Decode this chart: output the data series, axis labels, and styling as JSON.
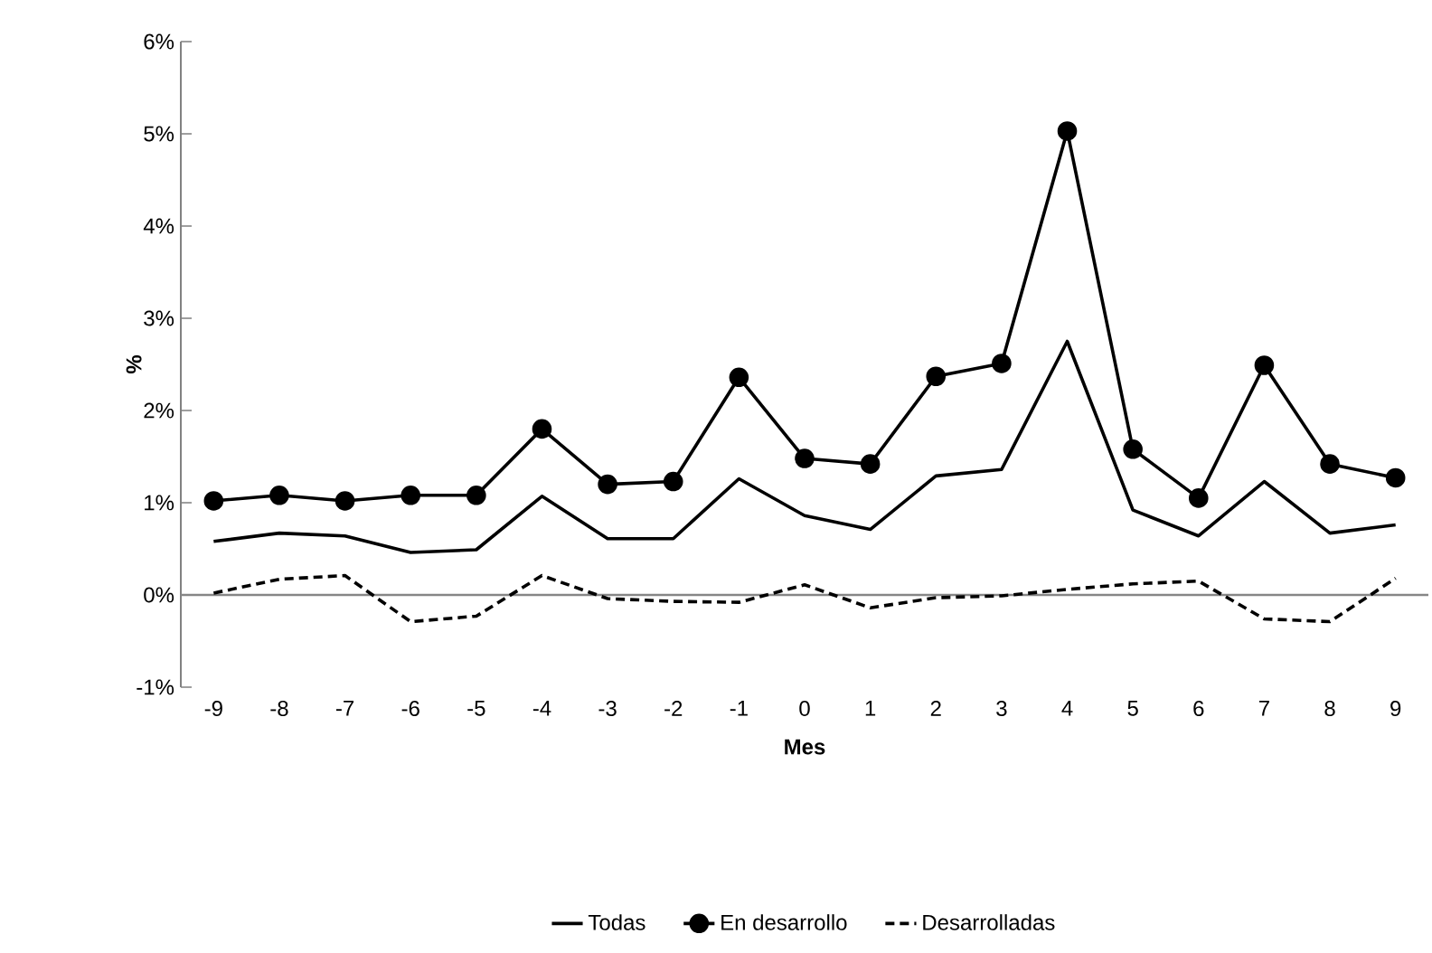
{
  "chart_data": {
    "type": "line",
    "xlabel": "Mes",
    "ylabel": "%",
    "categories": [
      "-9",
      "-8",
      "-7",
      "-6",
      "-5",
      "-4",
      "-3",
      "-2",
      "-1",
      "0",
      "1",
      "2",
      "3",
      "4",
      "5",
      "6",
      "7",
      "8",
      "9"
    ],
    "series": [
      {
        "name": "Todas",
        "color": "#000000",
        "marker": "none",
        "line_style": "solid",
        "values": [
          0.58,
          0.67,
          0.64,
          0.46,
          0.49,
          1.07,
          0.61,
          0.61,
          1.26,
          0.86,
          0.71,
          1.29,
          1.36,
          2.75,
          0.92,
          0.64,
          1.23,
          0.67,
          0.76
        ]
      },
      {
        "name": "En desarrollo",
        "color": "#000000",
        "marker": "circle",
        "line_style": "solid",
        "values": [
          1.02,
          1.08,
          1.02,
          1.08,
          1.08,
          1.8,
          1.2,
          1.23,
          2.36,
          1.48,
          1.42,
          2.37,
          2.51,
          5.03,
          1.58,
          1.05,
          2.49,
          1.42,
          1.27
        ]
      },
      {
        "name": "Desarrolladas",
        "color": "#000000",
        "marker": "none",
        "line_style": "dashed",
        "values": [
          0.02,
          0.17,
          0.21,
          -0.29,
          -0.23,
          0.21,
          -0.04,
          -0.07,
          -0.08,
          0.11,
          -0.14,
          -0.03,
          -0.01,
          0.06,
          0.12,
          0.15,
          -0.26,
          -0.29,
          0.18
        ]
      }
    ],
    "ylim": [
      -1,
      6
    ],
    "yticks": [
      {
        "value": -1,
        "label": "-1%"
      },
      {
        "value": 0,
        "label": "0%"
      },
      {
        "value": 1,
        "label": "1%"
      },
      {
        "value": 2,
        "label": "2%"
      },
      {
        "value": 3,
        "label": "3%"
      },
      {
        "value": 4,
        "label": "4%"
      },
      {
        "value": 5,
        "label": "5%"
      },
      {
        "value": 6,
        "label": "6%"
      }
    ],
    "ref_lines": [
      {
        "axis": "y",
        "value": 0,
        "color": "#868686"
      }
    ],
    "legend": "bottom"
  }
}
